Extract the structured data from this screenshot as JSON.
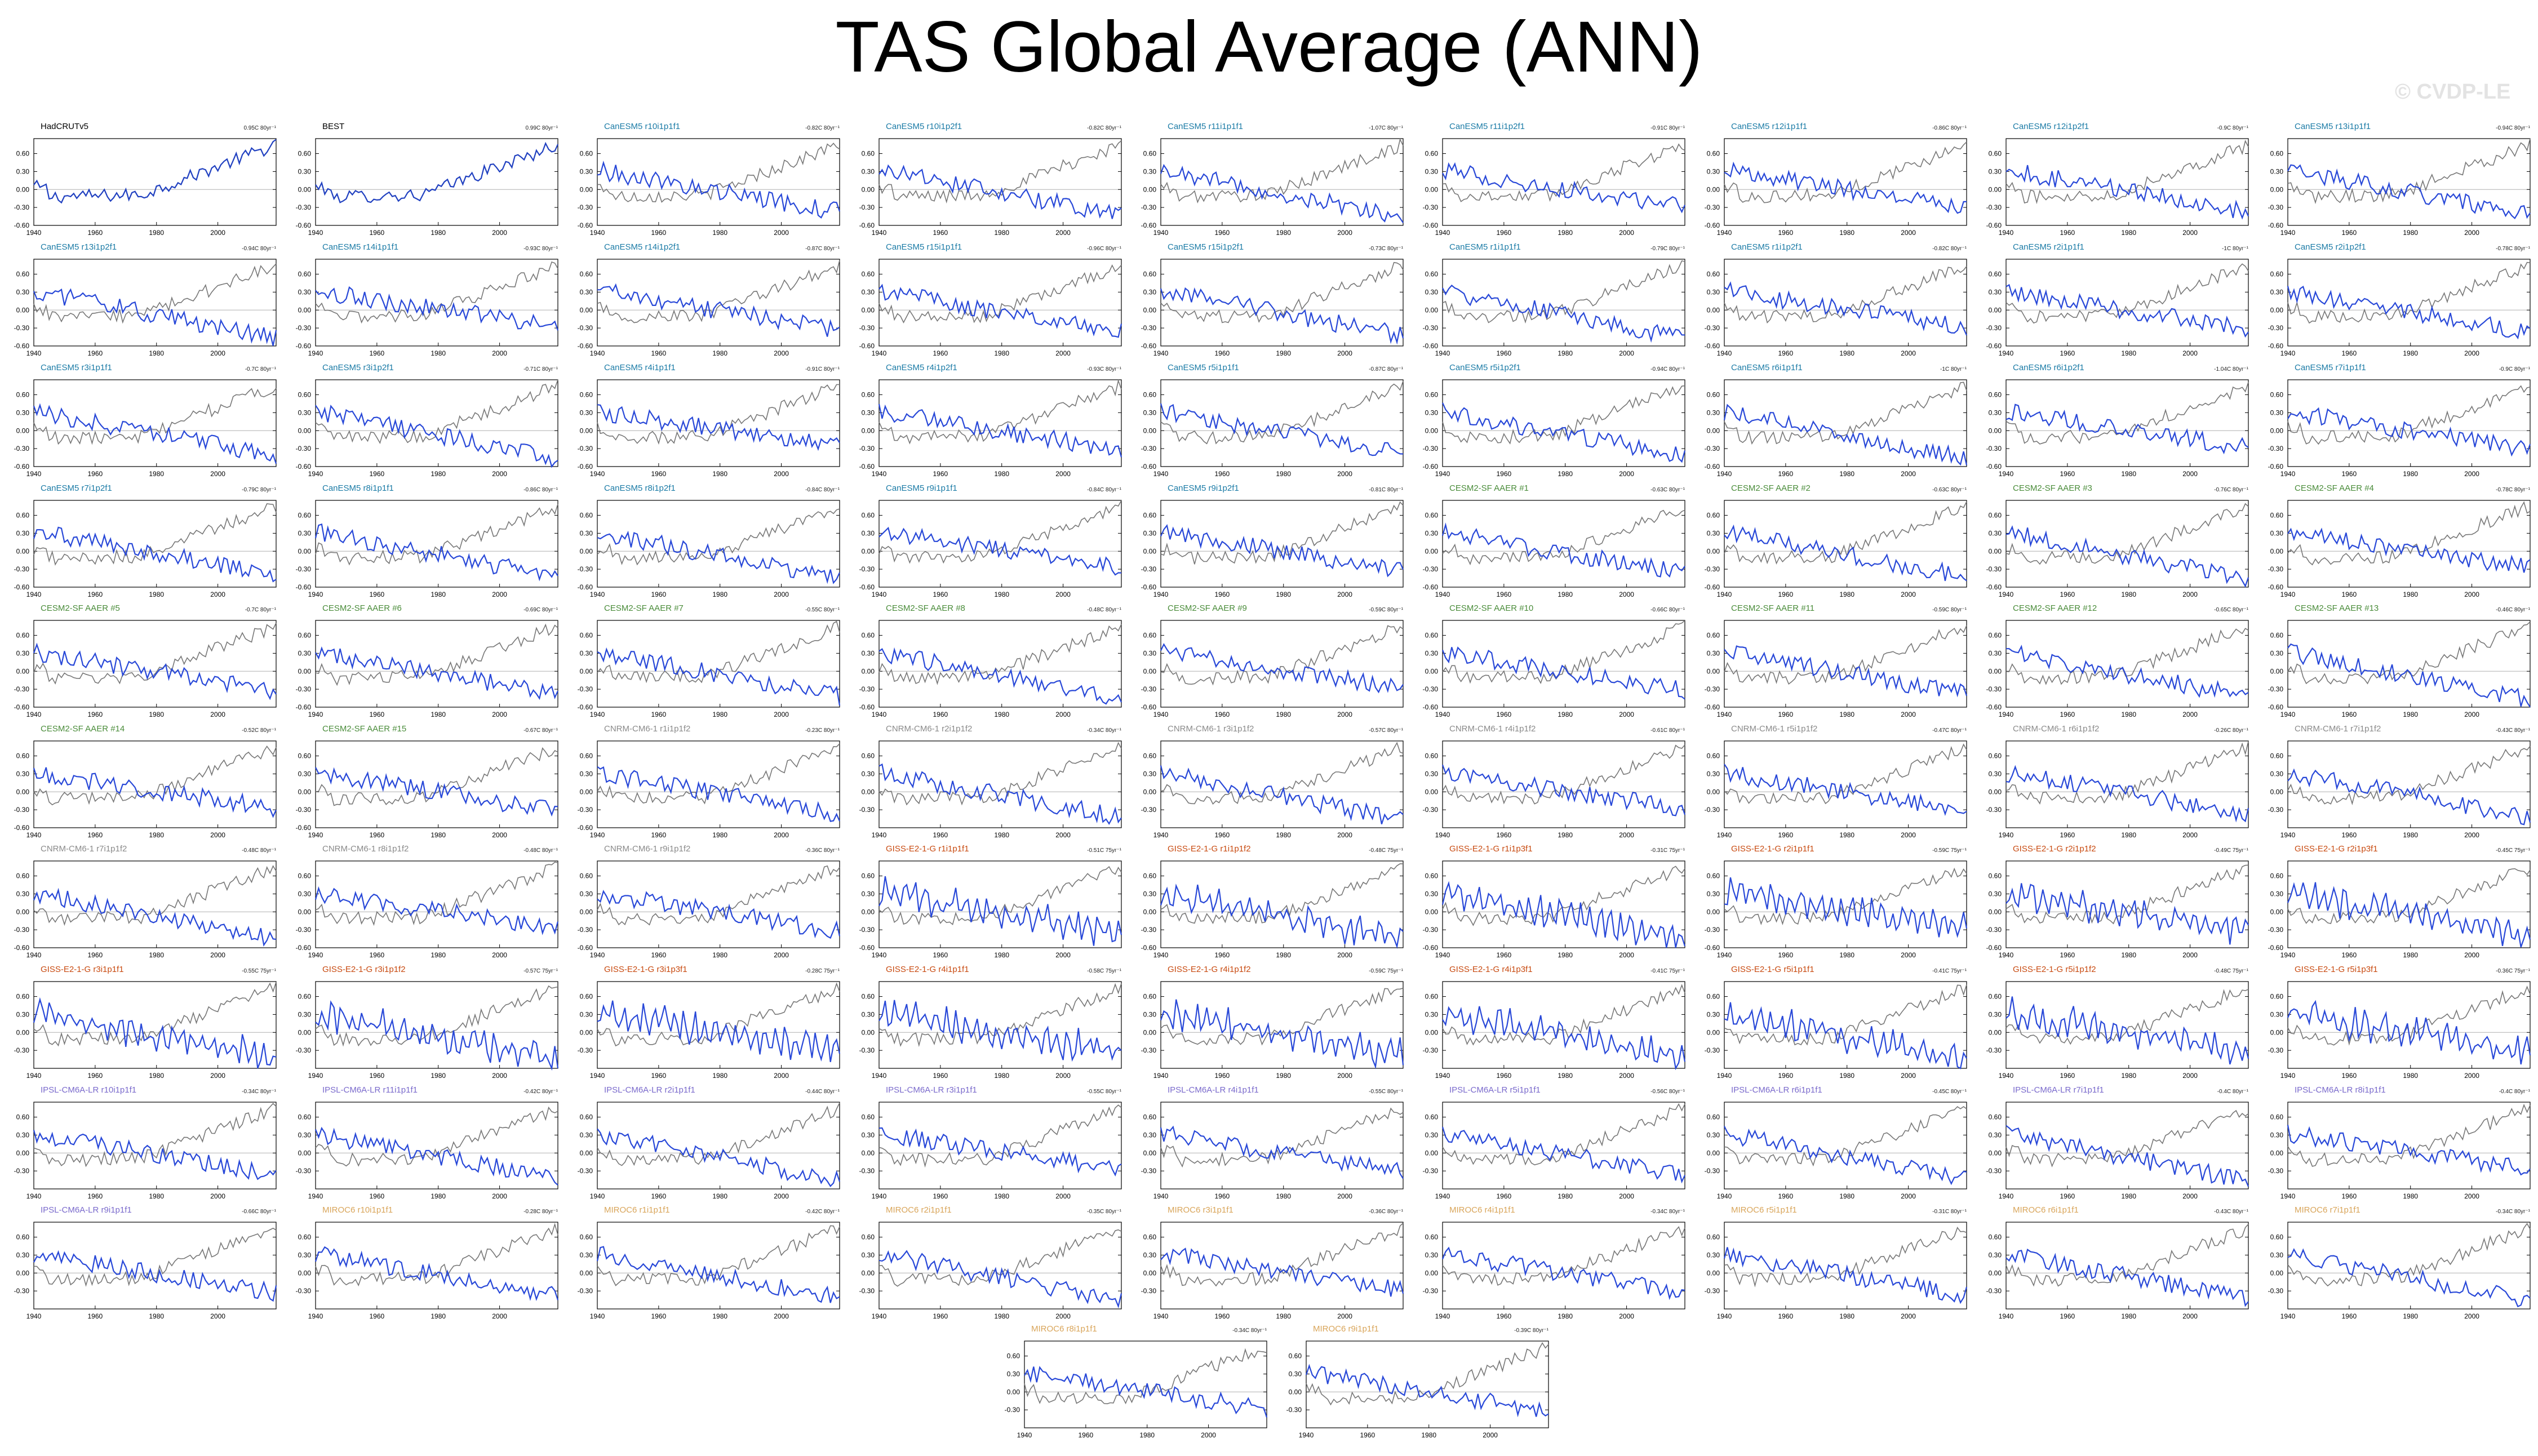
{
  "title": "TAS Global Average (ANN)",
  "watermark": "© CVDP-LE",
  "colors": {
    "obs_line": "#2040c0",
    "model_line": "#2848d8",
    "obs_ref_line": "#777777",
    "zero_line": "#b0b0b0",
    "CanESM5": "#1b7ba6",
    "CESM2-SF AAER": "#4a8c3a",
    "CNRM-CM6-1": "#8a8a8a",
    "GISS-E2-1-G": "#c84a10",
    "IPSL-CM6A-LR": "#7a6acc",
    "MIROC6": "#d9a55a",
    "obs": "#000000"
  },
  "chart_data": {
    "type": "line",
    "xlim": [
      1940,
      2019
    ],
    "xticks": [
      1940,
      1960,
      1980,
      2000
    ],
    "yticks": [
      0.6,
      0.3,
      0.0,
      -0.3,
      -0.6
    ],
    "ytick_labels": [
      "0.60",
      "0.30",
      "0.00",
      "-0.30",
      "-0.60"
    ],
    "ylim": [
      -0.6,
      0.85
    ],
    "panels": [
      {
        "title": "HadCRUTv5",
        "group": "obs",
        "trend": "0.95C 80yr⁻¹"
      },
      {
        "title": "BEST",
        "group": "obs",
        "trend": "0.99C 80yr⁻¹"
      },
      {
        "title": "CanESM5 r10i1p1f1",
        "group": "CanESM5",
        "trend": "-0.82C 80yr⁻¹"
      },
      {
        "title": "CanESM5 r10i1p2f1",
        "group": "CanESM5",
        "trend": "-0.82C 80yr⁻¹"
      },
      {
        "title": "CanESM5 r11i1p1f1",
        "group": "CanESM5",
        "trend": "-1.07C 80yr⁻¹"
      },
      {
        "title": "CanESM5 r11i1p2f1",
        "group": "CanESM5",
        "trend": "-0.91C 80yr⁻¹"
      },
      {
        "title": "CanESM5 r12i1p1f1",
        "group": "CanESM5",
        "trend": "-0.86C 80yr⁻¹"
      },
      {
        "title": "CanESM5 r12i1p2f1",
        "group": "CanESM5",
        "trend": "-0.9C 80yr⁻¹"
      },
      {
        "title": "CanESM5 r13i1p1f1",
        "group": "CanESM5",
        "trend": "-0.94C 80yr⁻¹"
      },
      {
        "title": "CanESM5 r13i1p2f1",
        "group": "CanESM5",
        "trend": "-0.94C 80yr⁻¹"
      },
      {
        "title": "CanESM5 r14i1p1f1",
        "group": "CanESM5",
        "trend": "-0.93C 80yr⁻¹"
      },
      {
        "title": "CanESM5 r14i1p2f1",
        "group": "CanESM5",
        "trend": "-0.87C 80yr⁻¹"
      },
      {
        "title": "CanESM5 r15i1p1f1",
        "group": "CanESM5",
        "trend": "-0.96C 80yr⁻¹"
      },
      {
        "title": "CanESM5 r15i1p2f1",
        "group": "CanESM5",
        "trend": "-0.73C 80yr⁻¹"
      },
      {
        "title": "CanESM5 r1i1p1f1",
        "group": "CanESM5",
        "trend": "-0.79C 80yr⁻¹"
      },
      {
        "title": "CanESM5 r1i1p2f1",
        "group": "CanESM5",
        "trend": "-0.82C 80yr⁻¹"
      },
      {
        "title": "CanESM5 r2i1p1f1",
        "group": "CanESM5",
        "trend": "-1C 80yr⁻¹"
      },
      {
        "title": "CanESM5 r2i1p2f1",
        "group": "CanESM5",
        "trend": "-0.78C 80yr⁻¹"
      },
      {
        "title": "CanESM5 r3i1p1f1",
        "group": "CanESM5",
        "trend": "-0.7C 80yr⁻¹"
      },
      {
        "title": "CanESM5 r3i1p2f1",
        "group": "CanESM5",
        "trend": "-0.71C 80yr⁻¹"
      },
      {
        "title": "CanESM5 r4i1p1f1",
        "group": "CanESM5",
        "trend": "-0.91C 80yr⁻¹"
      },
      {
        "title": "CanESM5 r4i1p2f1",
        "group": "CanESM5",
        "trend": "-0.93C 80yr⁻¹"
      },
      {
        "title": "CanESM5 r5i1p1f1",
        "group": "CanESM5",
        "trend": "-0.87C 80yr⁻¹"
      },
      {
        "title": "CanESM5 r5i1p2f1",
        "group": "CanESM5",
        "trend": "-0.94C 80yr⁻¹"
      },
      {
        "title": "CanESM5 r6i1p1f1",
        "group": "CanESM5",
        "trend": "-1C 80yr⁻¹"
      },
      {
        "title": "CanESM5 r6i1p2f1",
        "group": "CanESM5",
        "trend": "-1.04C 80yr⁻¹"
      },
      {
        "title": "CanESM5 r7i1p1f1",
        "group": "CanESM5",
        "trend": "-0.9C 80yr⁻¹"
      },
      {
        "title": "CanESM5 r7i1p2f1",
        "group": "CanESM5",
        "trend": "-0.79C 80yr⁻¹"
      },
      {
        "title": "CanESM5 r8i1p1f1",
        "group": "CanESM5",
        "trend": "-0.86C 80yr⁻¹"
      },
      {
        "title": "CanESM5 r8i1p2f1",
        "group": "CanESM5",
        "trend": "-0.84C 80yr⁻¹"
      },
      {
        "title": "CanESM5 r9i1p1f1",
        "group": "CanESM5",
        "trend": "-0.84C 80yr⁻¹"
      },
      {
        "title": "CanESM5 r9i1p2f1",
        "group": "CanESM5",
        "trend": "-0.81C 80yr⁻¹"
      },
      {
        "title": "CESM2-SF AAER #1",
        "group": "CESM2-SF AAER",
        "trend": "-0.63C 80yr⁻¹"
      },
      {
        "title": "CESM2-SF AAER #2",
        "group": "CESM2-SF AAER",
        "trend": "-0.63C 80yr⁻¹"
      },
      {
        "title": "CESM2-SF AAER #3",
        "group": "CESM2-SF AAER",
        "trend": "-0.76C 80yr⁻¹"
      },
      {
        "title": "CESM2-SF AAER #4",
        "group": "CESM2-SF AAER",
        "trend": "-0.78C 80yr⁻¹"
      },
      {
        "title": "CESM2-SF AAER #5",
        "group": "CESM2-SF AAER",
        "trend": "-0.7C 80yr⁻¹"
      },
      {
        "title": "CESM2-SF AAER #6",
        "group": "CESM2-SF AAER",
        "trend": "-0.69C 80yr⁻¹"
      },
      {
        "title": "CESM2-SF AAER #7",
        "group": "CESM2-SF AAER",
        "trend": "-0.55C 80yr⁻¹"
      },
      {
        "title": "CESM2-SF AAER #8",
        "group": "CESM2-SF AAER",
        "trend": "-0.48C 80yr⁻¹"
      },
      {
        "title": "CESM2-SF AAER #9",
        "group": "CESM2-SF AAER",
        "trend": "-0.59C 80yr⁻¹"
      },
      {
        "title": "CESM2-SF AAER #10",
        "group": "CESM2-SF AAER",
        "trend": "-0.66C 80yr⁻¹"
      },
      {
        "title": "CESM2-SF AAER #11",
        "group": "CESM2-SF AAER",
        "trend": "-0.59C 80yr⁻¹"
      },
      {
        "title": "CESM2-SF AAER #12",
        "group": "CESM2-SF AAER",
        "trend": "-0.65C 80yr⁻¹"
      },
      {
        "title": "CESM2-SF AAER #13",
        "group": "CESM2-SF AAER",
        "trend": "-0.46C 80yr⁻¹"
      },
      {
        "title": "CESM2-SF AAER #14",
        "group": "CESM2-SF AAER",
        "trend": "-0.52C 80yr⁻¹"
      },
      {
        "title": "CESM2-SF AAER #15",
        "group": "CESM2-SF AAER",
        "trend": "-0.67C 80yr⁻¹"
      },
      {
        "title": "CNRM-CM6-1 r1i1p1f2",
        "group": "CNRM-CM6-1",
        "trend": "-0.23C 80yr⁻¹"
      },
      {
        "title": "CNRM-CM6-1 r2i1p1f2",
        "group": "CNRM-CM6-1",
        "trend": "-0.34C 80yr⁻¹"
      },
      {
        "title": "CNRM-CM6-1 r3i1p1f2",
        "group": "CNRM-CM6-1",
        "trend": "-0.57C 80yr⁻¹"
      },
      {
        "title": "CNRM-CM6-1 r4i1p1f2",
        "group": "CNRM-CM6-1",
        "trend": "-0.61C 80yr⁻¹"
      },
      {
        "title": "CNRM-CM6-1 r5i1p1f2",
        "group": "CNRM-CM6-1",
        "trend": "-0.47C 80yr⁻¹"
      },
      {
        "title": "CNRM-CM6-1 r6i1p1f2",
        "group": "CNRM-CM6-1",
        "trend": "-0.26C 80yr⁻¹"
      },
      {
        "title": "CNRM-CM6-1 r7i1p1f2",
        "group": "CNRM-CM6-1",
        "trend": "-0.43C 80yr⁻¹"
      },
      {
        "title": "CNRM-CM6-1 r7i1p1f2",
        "group": "CNRM-CM6-1",
        "trend": "-0.48C 80yr⁻¹"
      },
      {
        "title": "CNRM-CM6-1 r8i1p1f2",
        "group": "CNRM-CM6-1",
        "trend": "-0.48C 80yr⁻¹"
      },
      {
        "title": "CNRM-CM6-1 r9i1p1f2",
        "group": "CNRM-CM6-1",
        "trend": "-0.36C 80yr⁻¹"
      },
      {
        "title": "GISS-E2-1-G r1i1p1f1",
        "group": "GISS-E2-1-G",
        "trend": "-0.51C 75yr⁻¹"
      },
      {
        "title": "GISS-E2-1-G r1i1p1f2",
        "group": "GISS-E2-1-G",
        "trend": "-0.48C 75yr⁻¹"
      },
      {
        "title": "GISS-E2-1-G r1i1p3f1",
        "group": "GISS-E2-1-G",
        "trend": "-0.31C 75yr⁻¹"
      },
      {
        "title": "GISS-E2-1-G r2i1p1f1",
        "group": "GISS-E2-1-G",
        "trend": "-0.59C 75yr⁻¹"
      },
      {
        "title": "GISS-E2-1-G r2i1p1f2",
        "group": "GISS-E2-1-G",
        "trend": "-0.49C 75yr⁻¹"
      },
      {
        "title": "GISS-E2-1-G r2i1p3f1",
        "group": "GISS-E2-1-G",
        "trend": "-0.45C 75yr⁻¹"
      },
      {
        "title": "GISS-E2-1-G r3i1p1f1",
        "group": "GISS-E2-1-G",
        "trend": "-0.55C 75yr⁻¹"
      },
      {
        "title": "GISS-E2-1-G r3i1p1f2",
        "group": "GISS-E2-1-G",
        "trend": "-0.57C 75yr⁻¹"
      },
      {
        "title": "GISS-E2-1-G r3i1p3f1",
        "group": "GISS-E2-1-G",
        "trend": "-0.28C 75yr⁻¹"
      },
      {
        "title": "GISS-E2-1-G r4i1p1f1",
        "group": "GISS-E2-1-G",
        "trend": "-0.58C 75yr⁻¹"
      },
      {
        "title": "GISS-E2-1-G r4i1p1f2",
        "group": "GISS-E2-1-G",
        "trend": "-0.59C 75yr⁻¹"
      },
      {
        "title": "GISS-E2-1-G r4i1p3f1",
        "group": "GISS-E2-1-G",
        "trend": "-0.41C 75yr⁻¹"
      },
      {
        "title": "GISS-E2-1-G r5i1p1f1",
        "group": "GISS-E2-1-G",
        "trend": "-0.41C 75yr⁻¹"
      },
      {
        "title": "GISS-E2-1-G r5i1p1f2",
        "group": "GISS-E2-1-G",
        "trend": "-0.48C 75yr⁻¹"
      },
      {
        "title": "GISS-E2-1-G r5i1p3f1",
        "group": "GISS-E2-1-G",
        "trend": "-0.36C 75yr⁻¹"
      },
      {
        "title": "IPSL-CM6A-LR r10i1p1f1",
        "group": "IPSL-CM6A-LR",
        "trend": "-0.34C 80yr⁻¹"
      },
      {
        "title": "IPSL-CM6A-LR r11i1p1f1",
        "group": "IPSL-CM6A-LR",
        "trend": "-0.42C 80yr⁻¹"
      },
      {
        "title": "IPSL-CM6A-LR r2i1p1f1",
        "group": "IPSL-CM6A-LR",
        "trend": "-0.44C 80yr⁻¹"
      },
      {
        "title": "IPSL-CM6A-LR r3i1p1f1",
        "group": "IPSL-CM6A-LR",
        "trend": "-0.55C 80yr⁻¹"
      },
      {
        "title": "IPSL-CM6A-LR r4i1p1f1",
        "group": "IPSL-CM6A-LR",
        "trend": "-0.55C 80yr⁻¹"
      },
      {
        "title": "IPSL-CM6A-LR r5i1p1f1",
        "group": "IPSL-CM6A-LR",
        "trend": "-0.56C 80yr⁻¹"
      },
      {
        "title": "IPSL-CM6A-LR r6i1p1f1",
        "group": "IPSL-CM6A-LR",
        "trend": "-0.45C 80yr⁻¹"
      },
      {
        "title": "IPSL-CM6A-LR r7i1p1f1",
        "group": "IPSL-CM6A-LR",
        "trend": "-0.4C 80yr⁻¹"
      },
      {
        "title": "IPSL-CM6A-LR r8i1p1f1",
        "group": "IPSL-CM6A-LR",
        "trend": "-0.4C 80yr⁻¹"
      },
      {
        "title": "IPSL-CM6A-LR r9i1p1f1",
        "group": "IPSL-CM6A-LR",
        "trend": "-0.66C 80yr⁻¹"
      },
      {
        "title": "MIROC6 r10i1p1f1",
        "group": "MIROC6",
        "trend": "-0.28C 80yr⁻¹"
      },
      {
        "title": "MIROC6 r1i1p1f1",
        "group": "MIROC6",
        "trend": "-0.42C 80yr⁻¹"
      },
      {
        "title": "MIROC6 r2i1p1f1",
        "group": "MIROC6",
        "trend": "-0.35C 80yr⁻¹"
      },
      {
        "title": "MIROC6 r3i1p1f1",
        "group": "MIROC6",
        "trend": "-0.36C 80yr⁻¹"
      },
      {
        "title": "MIROC6 r4i1p1f1",
        "group": "MIROC6",
        "trend": "-0.34C 80yr⁻¹"
      },
      {
        "title": "MIROC6 r5i1p1f1",
        "group": "MIROC6",
        "trend": "-0.31C 80yr⁻¹"
      },
      {
        "title": "MIROC6 r6i1p1f1",
        "group": "MIROC6",
        "trend": "-0.43C 80yr⁻¹"
      },
      {
        "title": "MIROC6 r7i1p1f1",
        "group": "MIROC6",
        "trend": "-0.34C 80yr⁻¹"
      },
      {
        "title": "MIROC6 r8i1p1f1",
        "group": "MIROC6",
        "trend": "-0.34C 80yr⁻¹"
      },
      {
        "title": "MIROC6 r9i1p1f1",
        "group": "MIROC6",
        "trend": "-0.39C 80yr⁻¹"
      }
    ]
  }
}
